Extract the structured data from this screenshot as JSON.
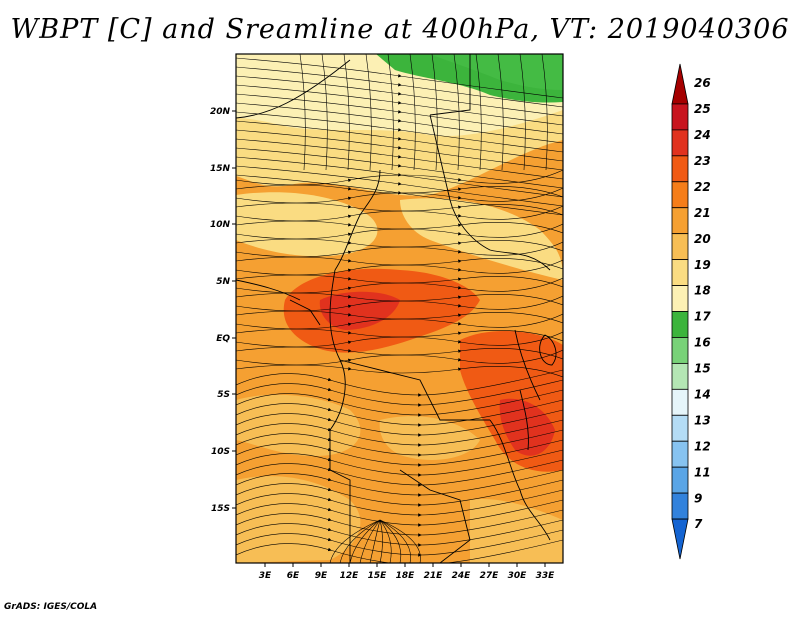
{
  "title": "WBPT [C] and Sreamline at 400hPa, VT: 2019040306",
  "footer": "GrADS: IGES/COLA",
  "map": {
    "lat_labels": [
      "20N",
      "15N",
      "10N",
      "5N",
      "EQ",
      "5S",
      "10S",
      "15S"
    ],
    "lon_labels": [
      "3E",
      "6E",
      "9E",
      "12E",
      "15E",
      "18E",
      "21E",
      "24E",
      "27E",
      "30E",
      "33E"
    ]
  },
  "colorbar": {
    "labels": [
      "26",
      "25",
      "24",
      "23",
      "22",
      "21",
      "20",
      "19",
      "18",
      "17",
      "16",
      "15",
      "14",
      "13",
      "12",
      "11",
      "9",
      "7"
    ],
    "colors": [
      "#a50000",
      "#c8141e",
      "#e1321e",
      "#f05a14",
      "#f57d19",
      "#f5a032",
      "#f7be55",
      "#fadc82",
      "#fcf0b4",
      "#3cb43c",
      "#78d278",
      "#b4e6b4",
      "#e6f5fa",
      "#b4dcf5",
      "#87c3f0",
      "#5aa5e6",
      "#3282dc",
      "#1464d2"
    ]
  }
}
